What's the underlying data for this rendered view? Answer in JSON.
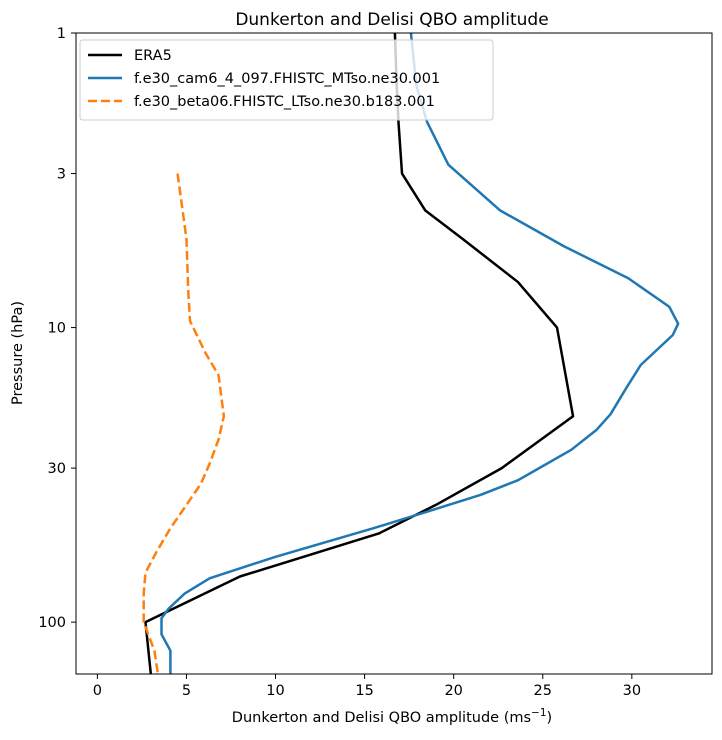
{
  "chart_data": {
    "type": "line",
    "title": "Dunkerton and Delisi QBO amplitude",
    "xlabel": "Dunkerton and Delisi QBO amplitude (ms",
    "xlabel_sup": "−1",
    "xlabel_end": ")",
    "ylabel": "Pressure (hPa)",
    "xlim": [
      -1.2,
      34.5
    ],
    "ylim": [
      150,
      1
    ],
    "y_scale": "log",
    "y_inverted": true,
    "xticks": [
      0,
      5,
      10,
      15,
      20,
      25,
      30
    ],
    "yticks": [
      1,
      3,
      10,
      30,
      100
    ],
    "grid": false,
    "legend_placement": "top-left",
    "series": [
      {
        "name": "ERA5",
        "color": "#000000",
        "style": "solid",
        "points": [
          [
            16.7,
            1
          ],
          [
            16.8,
            1.5
          ],
          [
            16.9,
            2
          ],
          [
            17.1,
            3
          ],
          [
            18.4,
            4
          ],
          [
            20.5,
            5
          ],
          [
            23.6,
            7
          ],
          [
            25.8,
            10
          ],
          [
            26.7,
            20
          ],
          [
            22.7,
            30
          ],
          [
            19.0,
            40
          ],
          [
            15.8,
            50
          ],
          [
            8.0,
            70
          ],
          [
            2.7,
            100
          ],
          [
            3.0,
            150
          ]
        ]
      },
      {
        "name": "f.e30_cam6_4_097.FHISTC_MTso.ne30.001",
        "color": "#1f77b4",
        "style": "solid",
        "points": [
          [
            17.6,
            1
          ],
          [
            17.9,
            1.5
          ],
          [
            18.5,
            2
          ],
          [
            19.7,
            2.8
          ],
          [
            22.6,
            4
          ],
          [
            26.2,
            5.3
          ],
          [
            29.8,
            6.8
          ],
          [
            32.1,
            8.5
          ],
          [
            32.6,
            9.7
          ],
          [
            32.3,
            10.6
          ],
          [
            30.5,
            13.4
          ],
          [
            29.7,
            16
          ],
          [
            28.8,
            19.7
          ],
          [
            28.0,
            22.3
          ],
          [
            26.6,
            26
          ],
          [
            24.8,
            30
          ],
          [
            23.6,
            33
          ],
          [
            21.5,
            37
          ],
          [
            18.6,
            42
          ],
          [
            15.5,
            48
          ],
          [
            10.0,
            60
          ],
          [
            6.3,
            71
          ],
          [
            4.9,
            80
          ],
          [
            4.0,
            90
          ],
          [
            3.6,
            97
          ],
          [
            3.6,
            110
          ],
          [
            4.1,
            125
          ],
          [
            4.1,
            150
          ]
        ]
      },
      {
        "name": "f.e30_beta06.FHISTC_LTso.ne30.b183.001",
        "color": "#ff7f0e",
        "style": "dashed",
        "points": [
          [
            4.5,
            3
          ],
          [
            5.0,
            5
          ],
          [
            5.1,
            7.5
          ],
          [
            5.2,
            9.5
          ],
          [
            6.1,
            12.3
          ],
          [
            6.8,
            14.5
          ],
          [
            7.0,
            18
          ],
          [
            7.1,
            20
          ],
          [
            6.8,
            24
          ],
          [
            6.3,
            29
          ],
          [
            5.8,
            34
          ],
          [
            5.0,
            40
          ],
          [
            4.1,
            48
          ],
          [
            3.3,
            58
          ],
          [
            2.7,
            68
          ],
          [
            2.6,
            80
          ],
          [
            2.6,
            100
          ],
          [
            3.2,
            125
          ],
          [
            3.4,
            150
          ]
        ]
      }
    ]
  }
}
